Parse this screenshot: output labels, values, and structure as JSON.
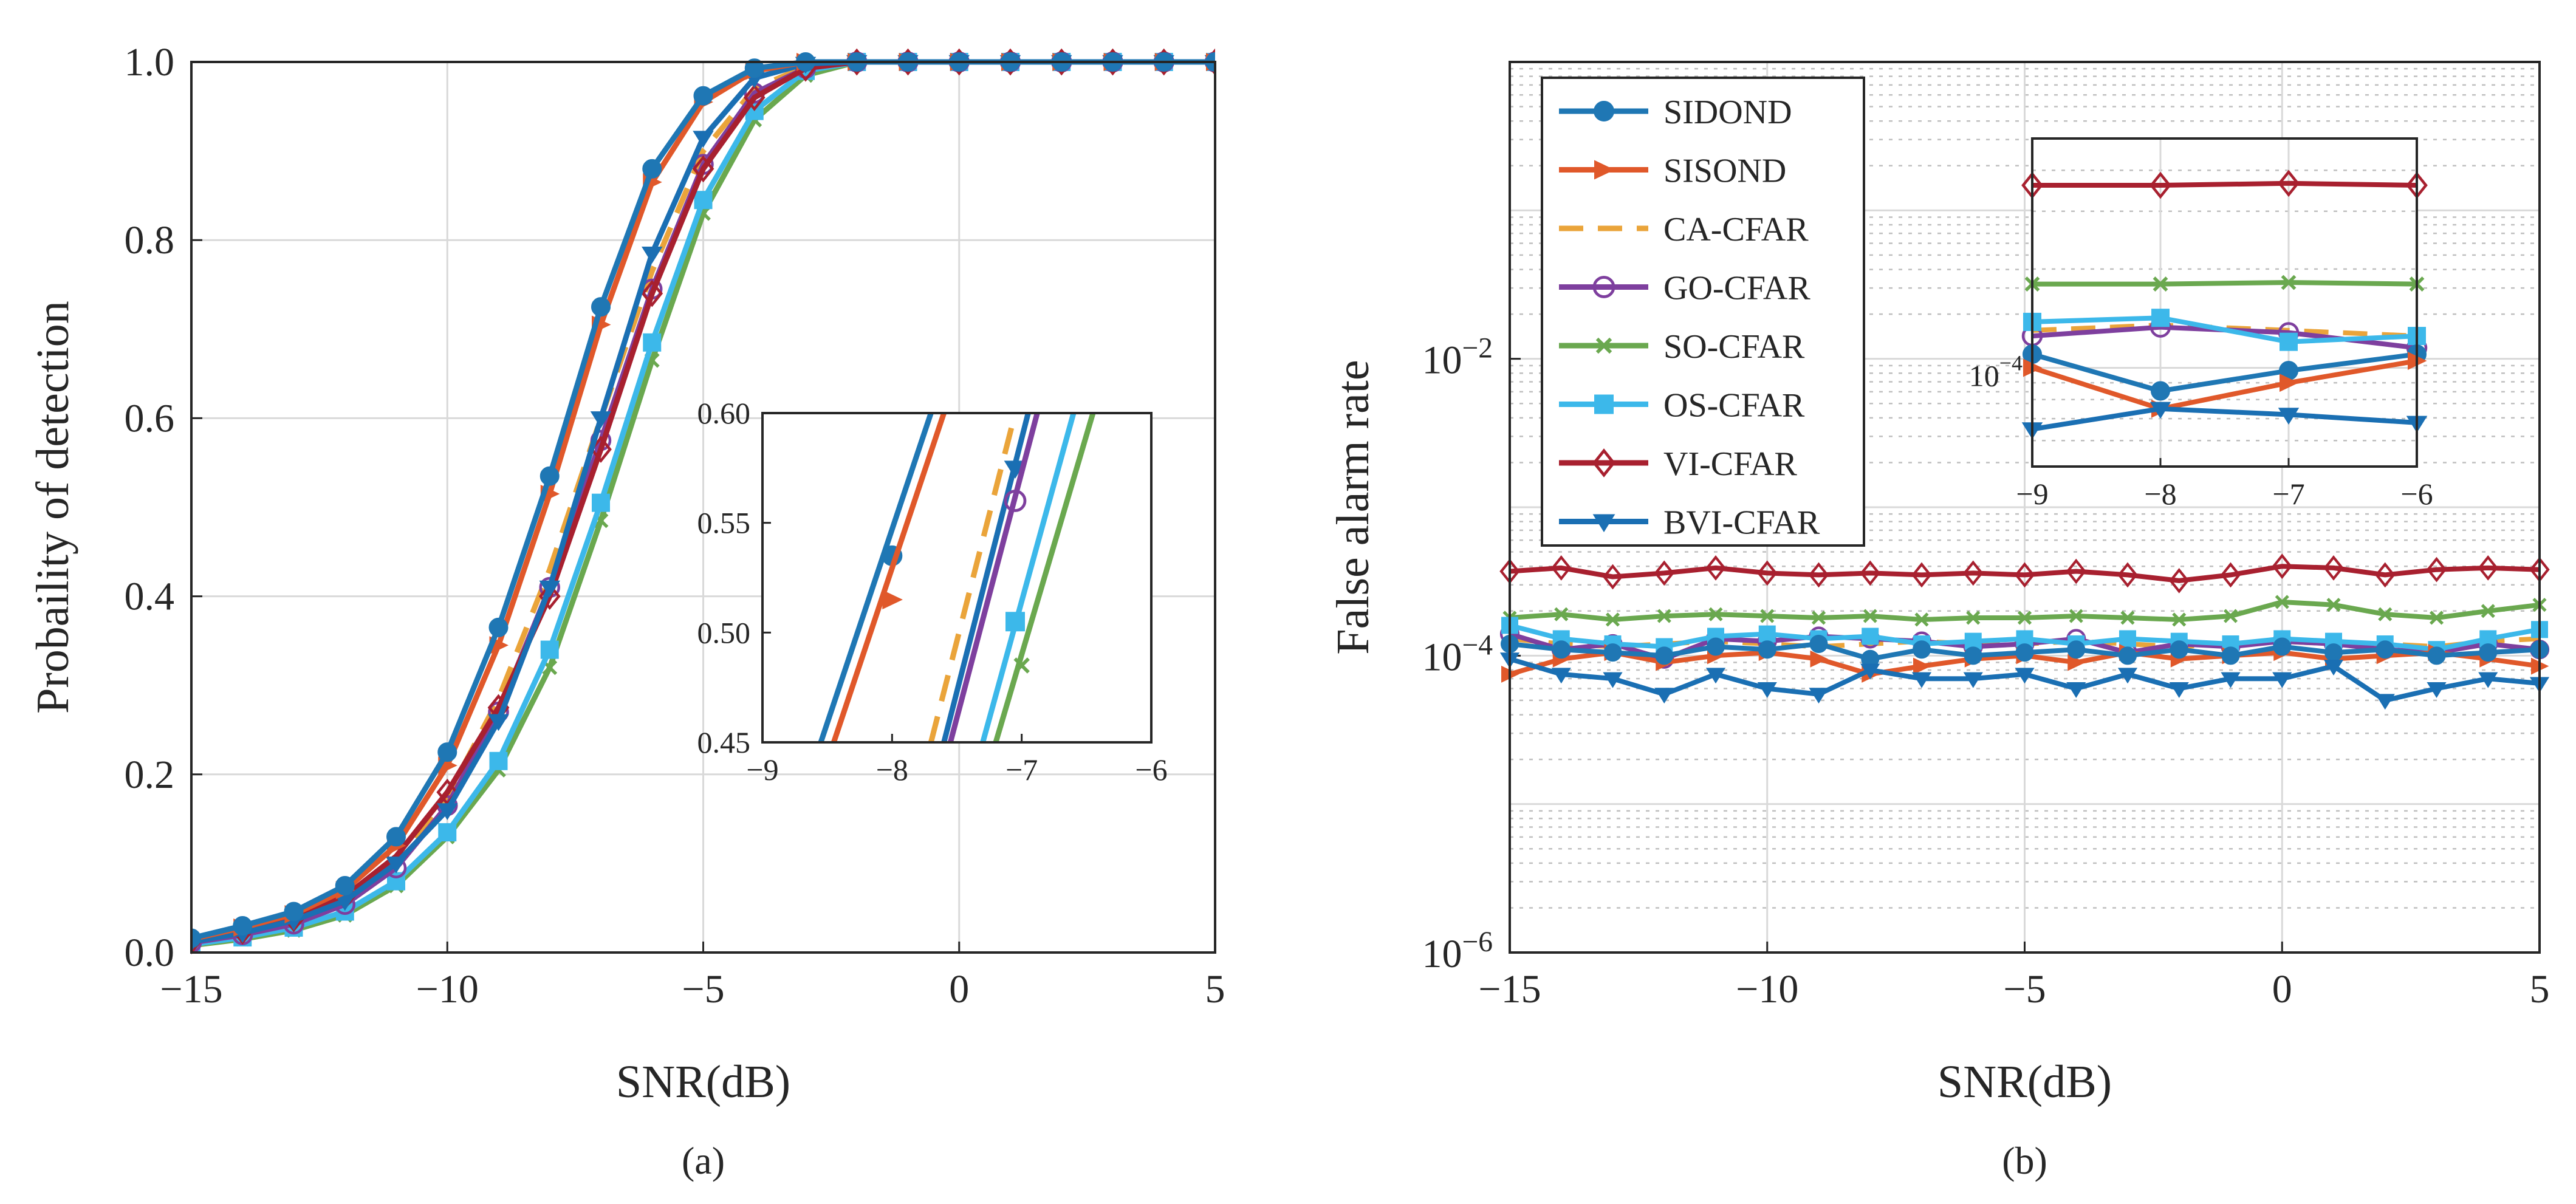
{
  "colors": {
    "SIDOND": "#1f77b4",
    "SISOND": "#e0582a",
    "CA-CFAR": "#eaa43a",
    "GO-CFAR": "#7e3f9e",
    "SO-CFAR": "#6aa84f",
    "OS-CFAR": "#3cb8ea",
    "VI-CFAR": "#a8202f",
    "BVI-CFAR": "#1a6fb3",
    "grid": "#d9d9d9",
    "axis": "#262626"
  },
  "markers": {
    "SIDOND": "circle-filled",
    "SISOND": "triangle-right-filled",
    "CA-CFAR": "none-dashed",
    "GO-CFAR": "circle-open",
    "SO-CFAR": "x-small",
    "OS-CFAR": "square-filled",
    "VI-CFAR": "diamond-open",
    "BVI-CFAR": "triangle-down-filled"
  },
  "chart_data": [
    {
      "type": "line",
      "panel_label": "(a)",
      "xlabel": "SNR(dB)",
      "ylabel": "Probaility of detection",
      "xlim": [
        -15,
        5
      ],
      "ylim": [
        0,
        1
      ],
      "xticks": [
        -15,
        -10,
        -5,
        0,
        5
      ],
      "xtick_labels": [
        "−15",
        "−10",
        "−5",
        "0",
        "5"
      ],
      "yticks": [
        0,
        0.2,
        0.4,
        0.6,
        0.8,
        1.0
      ],
      "ytick_labels": [
        "0.0",
        "0.2",
        "0.4",
        "0.6",
        "0.8",
        "1.0"
      ],
      "grid": true,
      "x": [
        -15,
        -14,
        -13,
        -12,
        -11,
        -10,
        -9,
        -8,
        -7,
        -6,
        -5,
        -4,
        -3,
        -2,
        -1,
        0,
        1,
        2,
        3,
        4,
        5
      ],
      "series": [
        {
          "name": "SIDOND",
          "values": [
            0.016,
            0.03,
            0.046,
            0.075,
            0.13,
            0.225,
            0.365,
            0.535,
            0.725,
            0.88,
            0.962,
            0.993,
            1.0,
            1.0,
            1.0,
            1.0,
            1.0,
            1.0,
            1.0,
            1.0,
            1.0
          ]
        },
        {
          "name": "SISOND",
          "values": [
            0.015,
            0.028,
            0.043,
            0.07,
            0.12,
            0.21,
            0.345,
            0.515,
            0.705,
            0.865,
            0.955,
            0.99,
            1.0,
            1.0,
            1.0,
            1.0,
            1.0,
            1.0,
            1.0,
            1.0,
            1.0
          ]
        },
        {
          "name": "CA-CFAR",
          "values": [
            0.012,
            0.022,
            0.035,
            0.057,
            0.1,
            0.175,
            0.285,
            0.43,
            0.6,
            0.765,
            0.9,
            0.97,
            0.995,
            1.0,
            1.0,
            1.0,
            1.0,
            1.0,
            1.0,
            1.0,
            1.0
          ]
        },
        {
          "name": "GO-CFAR",
          "values": [
            0.011,
            0.02,
            0.032,
            0.054,
            0.095,
            0.165,
            0.27,
            0.41,
            0.575,
            0.745,
            0.885,
            0.965,
            0.993,
            1.0,
            1.0,
            1.0,
            1.0,
            1.0,
            1.0,
            1.0,
            1.0
          ]
        },
        {
          "name": "SO-CFAR",
          "values": [
            0.008,
            0.015,
            0.025,
            0.042,
            0.075,
            0.13,
            0.205,
            0.32,
            0.485,
            0.665,
            0.83,
            0.935,
            0.985,
            1.0,
            1.0,
            1.0,
            1.0,
            1.0,
            1.0,
            1.0,
            1.0
          ]
        },
        {
          "name": "OS-CFAR",
          "values": [
            0.009,
            0.017,
            0.028,
            0.046,
            0.08,
            0.135,
            0.215,
            0.34,
            0.505,
            0.685,
            0.845,
            0.945,
            0.99,
            1.0,
            1.0,
            1.0,
            1.0,
            1.0,
            1.0,
            1.0,
            1.0
          ]
        },
        {
          "name": "VI-CFAR",
          "values": [
            0.013,
            0.024,
            0.038,
            0.063,
            0.108,
            0.18,
            0.275,
            0.4,
            0.565,
            0.74,
            0.88,
            0.96,
            0.993,
            1.0,
            1.0,
            1.0,
            1.0,
            1.0,
            1.0,
            1.0,
            1.0
          ]
        },
        {
          "name": "BVI-CFAR",
          "values": [
            0.012,
            0.022,
            0.036,
            0.058,
            0.1,
            0.16,
            0.26,
            0.41,
            0.6,
            0.785,
            0.915,
            0.982,
            0.998,
            1.0,
            1.0,
            1.0,
            1.0,
            1.0,
            1.0,
            1.0,
            1.0
          ]
        }
      ],
      "inset": {
        "xlim": [
          -9,
          -6
        ],
        "ylim": [
          0.45,
          0.6
        ],
        "xticks": [
          -9,
          -8,
          -7,
          -6
        ],
        "xtick_labels": [
          "−9",
          "−8",
          "−7",
          "−6"
        ],
        "yticks": [
          0.45,
          0.5,
          0.55,
          0.6
        ],
        "ytick_labels": [
          "0.45",
          "0.50",
          "0.55",
          "0.60"
        ],
        "location": "lower-right",
        "lines": [
          {
            "name": "SIDOND",
            "x1": -8.55,
            "x2": -7.7,
            "marker_x": -8.0,
            "marker_y": 0.535
          },
          {
            "name": "SISOND",
            "x1": -8.45,
            "x2": -7.6,
            "marker_x": -8.0,
            "marker_y": 0.515
          },
          {
            "name": "CA-CFAR",
            "x1": -7.7,
            "x2": -7.05,
            "marker_x": null,
            "marker_y": null
          },
          {
            "name": "BVI-CFAR",
            "x1": -7.6,
            "x2": -6.95,
            "marker_x": -7.05,
            "marker_y": 0.575
          },
          {
            "name": "GO-CFAR",
            "x1": -7.55,
            "x2": -6.88,
            "marker_x": -7.05,
            "marker_y": 0.56
          },
          {
            "name": "OS-CFAR",
            "x1": -7.3,
            "x2": -6.6,
            "marker_x": -7.05,
            "marker_y": 0.505
          },
          {
            "name": "SO-CFAR",
            "x1": -7.2,
            "x2": -6.45,
            "marker_x": -7.0,
            "marker_y": 0.485
          }
        ]
      }
    },
    {
      "type": "line",
      "panel_label": "(b)",
      "xlabel": "SNR(dB)",
      "ylabel": "False alarm rate",
      "yscale": "log",
      "xlim": [
        -15,
        5
      ],
      "ylim": [
        1e-06,
        1
      ],
      "xticks": [
        -15,
        -10,
        -5,
        0,
        5
      ],
      "xtick_labels": [
        "−15",
        "−10",
        "−5",
        "0",
        "5"
      ],
      "yticks": [
        1e-06,
        0.0001,
        0.01
      ],
      "ytick_bases": [
        "10",
        "10",
        "10"
      ],
      "ytick_exponents": [
        "−6",
        "−4",
        "−2"
      ],
      "grid": true,
      "minor_grid": true,
      "legend_location": "top-left",
      "legend": [
        "SIDOND",
        "SISOND",
        "CA-CFAR",
        "GO-CFAR",
        "SO-CFAR",
        "OS-CFAR",
        "VI-CFAR",
        "BVI-CFAR"
      ],
      "x": [
        -15,
        -14,
        -13,
        -12,
        -11,
        -10,
        -9,
        -8,
        -7,
        -6,
        -5,
        -4,
        -3,
        -2,
        -1,
        0,
        1,
        2,
        3,
        4,
        5
      ],
      "series": [
        {
          "name": "SIDOND",
          "values": [
            0.00012,
            0.00011,
            0.000105,
            0.0001,
            0.000115,
            0.00011,
            0.00012,
            9.5e-05,
            0.00011,
            0.0001,
            0.000105,
            0.00011,
            0.0001,
            0.00011,
            0.0001,
            0.000115,
            0.000105,
            0.00011,
            0.0001,
            0.000105,
            0.00011
          ]
        },
        {
          "name": "SISOND",
          "values": [
            7.5e-05,
            9.5e-05,
            0.000105,
            9e-05,
            0.0001,
            0.000105,
            9.5e-05,
            7.5e-05,
            8.5e-05,
            9.5e-05,
            0.0001,
            9e-05,
            0.000105,
            9.5e-05,
            0.0001,
            0.000105,
            9.5e-05,
            0.0001,
            0.000105,
            9.5e-05,
            8.5e-05
          ]
        },
        {
          "name": "CA-CFAR",
          "values": [
            0.00013,
            0.00012,
            0.000115,
            0.00012,
            0.000125,
            0.00012,
            0.000115,
            0.00012,
            0.000125,
            0.00012,
            0.00012,
            0.000125,
            0.00012,
            0.000115,
            0.00012,
            0.000125,
            0.00012,
            0.00012,
            0.000115,
            0.000125,
            0.00013
          ]
        },
        {
          "name": "GO-CFAR",
          "values": [
            0.00014,
            0.00011,
            0.00012,
            9.5e-05,
            0.00013,
            0.000125,
            0.000135,
            0.00013,
            0.000125,
            0.000115,
            0.00012,
            0.00013,
            0.000105,
            0.00012,
            0.000115,
            0.000125,
            0.00012,
            0.00011,
            0.000105,
            0.00012,
            0.00011
          ]
        },
        {
          "name": "SO-CFAR",
          "values": [
            0.00018,
            0.00019,
            0.000175,
            0.000185,
            0.00019,
            0.000185,
            0.00018,
            0.000185,
            0.000175,
            0.00018,
            0.00018,
            0.000185,
            0.00018,
            0.000175,
            0.000185,
            0.00023,
            0.00022,
            0.00019,
            0.00018,
            0.0002,
            0.00022
          ]
        },
        {
          "name": "OS-CFAR",
          "values": [
            0.00016,
            0.00013,
            0.00012,
            0.000115,
            0.000135,
            0.00014,
            0.00013,
            0.000135,
            0.00012,
            0.000125,
            0.00013,
            0.00012,
            0.00013,
            0.000125,
            0.00012,
            0.00013,
            0.000125,
            0.00012,
            0.00011,
            0.00013,
            0.00015
          ]
        },
        {
          "name": "VI-CFAR",
          "values": [
            0.00037,
            0.00039,
            0.00034,
            0.00036,
            0.00039,
            0.00036,
            0.00035,
            0.00036,
            0.00035,
            0.00036,
            0.00035,
            0.00037,
            0.00035,
            0.00032,
            0.00035,
            0.0004,
            0.00039,
            0.00035,
            0.00038,
            0.00039,
            0.00038
          ]
        },
        {
          "name": "BVI-CFAR",
          "values": [
            9.5e-05,
            7.5e-05,
            7e-05,
            5.5e-05,
            7.5e-05,
            6e-05,
            5.5e-05,
            8e-05,
            7e-05,
            7e-05,
            7.5e-05,
            6e-05,
            7.5e-05,
            6e-05,
            7e-05,
            7e-05,
            8.5e-05,
            5e-05,
            6e-05,
            7e-05,
            6.5e-05
          ]
        }
      ],
      "inset": {
        "xlim": [
          -9,
          -6
        ],
        "ylim": [
          5e-05,
          0.0005
        ],
        "xticks": [
          -9,
          -8,
          -7,
          -6
        ],
        "xtick_labels": [
          "−9",
          "−8",
          "−7",
          "−6"
        ],
        "ytick_base": "10",
        "ytick_exponent": "−4",
        "location": "top-right",
        "x": [
          -9,
          -8,
          -7,
          -6
        ],
        "series": [
          {
            "name": "VI-CFAR",
            "values": [
              0.00036,
              0.00036,
              0.000365,
              0.00036
            ]
          },
          {
            "name": "SO-CFAR",
            "values": [
              0.00018,
              0.00018,
              0.000182,
              0.00018
            ]
          },
          {
            "name": "CA-CFAR",
            "values": [
              0.00013,
              0.000135,
              0.00013,
              0.000125
            ]
          },
          {
            "name": "GO-CFAR",
            "values": [
              0.000125,
              0.000133,
              0.000128,
              0.000115
            ]
          },
          {
            "name": "OS-CFAR",
            "values": [
              0.000138,
              0.000142,
              0.00012,
              0.000125
            ]
          },
          {
            "name": "SIDOND",
            "values": [
              0.00011,
              8.5e-05,
              9.8e-05,
              0.00011
            ]
          },
          {
            "name": "SISOND",
            "values": [
              0.0001,
              7.5e-05,
              9e-05,
              0.000105
            ]
          },
          {
            "name": "BVI-CFAR",
            "values": [
              6.5e-05,
              7.5e-05,
              7.2e-05,
              6.8e-05
            ]
          }
        ]
      }
    }
  ]
}
